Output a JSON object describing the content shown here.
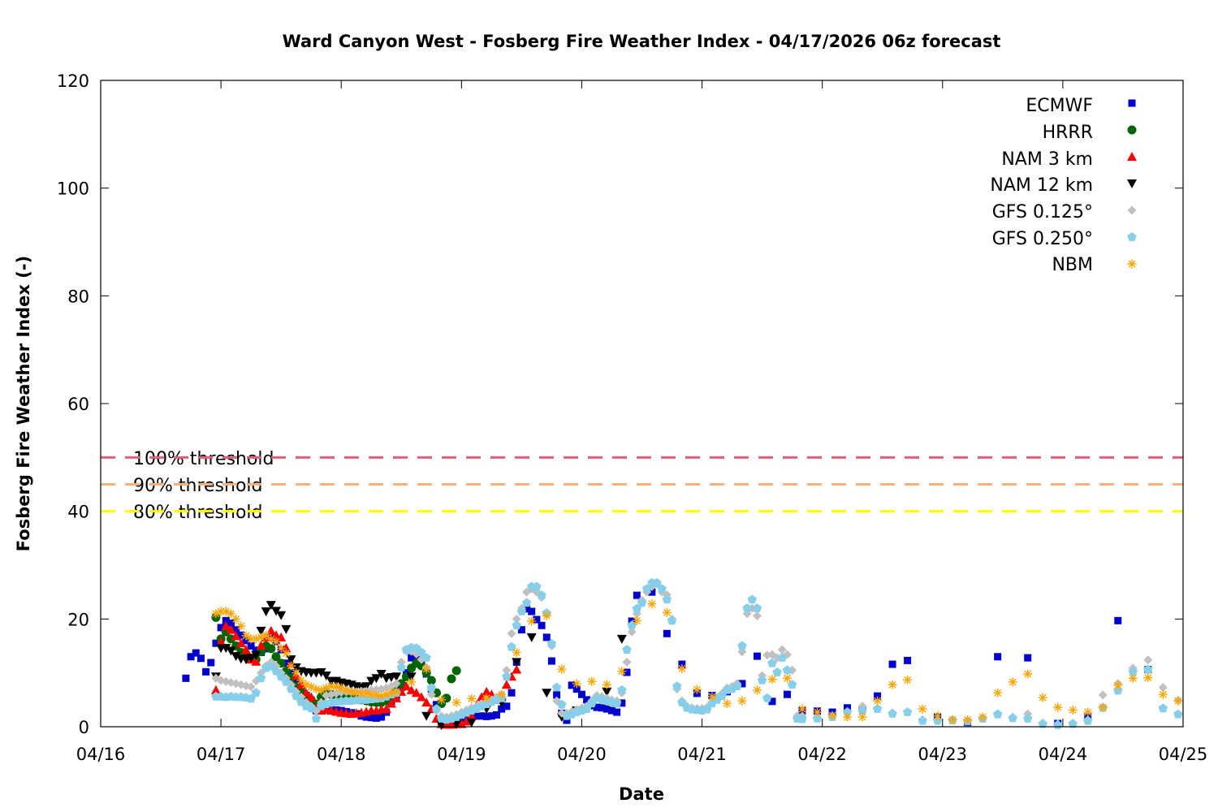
{
  "chart_data": {
    "type": "scatter",
    "title": "Ward Canyon West - Fosberg Fire Weather Index - 04/17/2026 06z forecast",
    "xlabel": "Date",
    "ylabel": "Fosberg Fire Weather Index (-)",
    "xlim": [
      "2026-04-16T00:00",
      "2026-04-25T00:00"
    ],
    "ylim": [
      0,
      120
    ],
    "yticks": [
      0,
      20,
      40,
      60,
      80,
      100,
      120
    ],
    "xticks": [
      {
        "t": "2026-04-16T00:00",
        "label": "04/16"
      },
      {
        "t": "2026-04-17T00:00",
        "label": "04/17"
      },
      {
        "t": "2026-04-18T00:00",
        "label": "04/18"
      },
      {
        "t": "2026-04-19T00:00",
        "label": "04/19"
      },
      {
        "t": "2026-04-20T00:00",
        "label": "04/20"
      },
      {
        "t": "2026-04-21T00:00",
        "label": "04/21"
      },
      {
        "t": "2026-04-22T00:00",
        "label": "04/22"
      },
      {
        "t": "2026-04-23T00:00",
        "label": "04/23"
      },
      {
        "t": "2026-04-24T00:00",
        "label": "04/24"
      },
      {
        "t": "2026-04-25T00:00",
        "label": "04/25"
      }
    ],
    "grid": false,
    "legend_position": "top-right",
    "thresholds": [
      {
        "label": "100% threshold",
        "value": 50,
        "color": "#e0607a"
      },
      {
        "label": "90% threshold",
        "value": 45,
        "color": "#f5b27e"
      },
      {
        "label": "80% threshold",
        "value": 40,
        "color": "#ffff00"
      }
    ],
    "series": [
      {
        "name": "ECMWF",
        "marker": "square",
        "color": "#0000cc",
        "segments": [
          {
            "start": "2026-04-16T17:00",
            "step_hours": 1,
            "values": [
              9,
              13,
              13.7,
              12.7,
              10.2,
              11.9,
              15.5,
              18.4,
              19.7,
              19.2,
              18,
              17,
              16,
              15,
              14.2,
              13.8,
              14.5,
              16.6,
              15.8,
              14.3,
              11.8,
              10,
              8.5,
              7,
              5.8,
              4.6,
              3,
              3,
              3.2,
              3,
              3.1,
              3,
              2.8,
              2.6,
              2.4,
              2,
              1.8,
              1.7,
              1.6,
              1.8,
              2.7,
              4.3,
              5.7,
              7.3,
              10,
              12.8,
              12.8,
              11.5,
              9.8,
              7,
              4.1,
              0.8,
              0.8,
              0.8,
              1.2,
              1.6,
              1.8,
              2,
              2,
              2,
              1.9,
              2,
              2.2,
              3.3,
              3.8,
              6.3,
              12,
              18,
              21.9,
              21.4,
              19.9,
              18.8,
              16.6,
              12.2,
              5.9,
              2.5,
              1.2,
              7.7,
              7,
              6,
              5,
              4,
              3.6,
              3.5,
              3.3,
              3,
              2.7,
              4.4,
              10.1,
              19.6,
              24.4
            ]
          },
          {
            "start": "2026-04-20T14:00",
            "step_hours": 3,
            "values": [
              25,
              17.3,
              11.6,
              6.2,
              5.8,
              6.5,
              8,
              13.1,
              4.7,
              6,
              3,
              2.9,
              2.7,
              3.5,
              3.3,
              5.7,
              11.6,
              12.3
            ]
          },
          {
            "start": "2026-04-22T23:00",
            "step_hours": 6,
            "values": [
              1.8,
              0.8,
              13,
              12.8,
              0.6,
              1.8,
              19.7,
              10.6
            ]
          }
        ]
      },
      {
        "name": "HRRR",
        "marker": "circle",
        "color": "#006400",
        "segments": [
          {
            "start": "2026-04-16T23:00",
            "step_hours": 1,
            "values": [
              20.3,
              16.3,
              17.6,
              16.3,
              15,
              13.8,
              13.1,
              12.6,
              12.5,
              13.9,
              15,
              14.5,
              13,
              11.8,
              10.3,
              9,
              7.5,
              6.5,
              5.7,
              5,
              4.2,
              5.5,
              6.3,
              6,
              5.8,
              5.6,
              5.5,
              5.3,
              5.2,
              5,
              4.8,
              4.6,
              4.5,
              4.5,
              4.8,
              5.5,
              6.5,
              8,
              9.3,
              10.9,
              11.8,
              11.3,
              10,
              8.6,
              6.3,
              4.3,
              5.3,
              8.9,
              10.4
            ]
          }
        ]
      },
      {
        "name": "NAM 3 km",
        "marker": "triangle-up",
        "color": "#ff0000",
        "segments": [
          {
            "start": "2026-04-16T23:00",
            "step_hours": 1,
            "values": [
              6.8,
              15.8,
              18.7,
              18,
              16.8,
              15.5,
              14.3,
              12.5,
              12.1,
              15.1,
              16.6,
              17.8,
              17,
              16.6,
              14.6,
              11.8,
              9.5,
              7.8,
              6.3,
              5.5,
              3.5,
              3,
              3.2,
              3,
              2.8,
              2.6,
              2.5,
              2.4,
              2.5,
              2.6,
              2.8,
              3,
              3,
              3.2,
              3.3,
              4.3,
              5.3,
              6.5,
              7.5,
              6.8,
              6.3,
              5.5,
              4.5,
              3.3,
              1.5,
              0.5,
              0.4,
              0.4,
              0.5,
              0.5,
              1,
              2,
              4,
              5.5,
              6.5,
              6,
              5,
              5.5,
              7.8,
              9.3,
              10.6
            ]
          }
        ]
      },
      {
        "name": "NAM 12 km",
        "marker": "triangle-down",
        "color": "#000000",
        "segments": [
          {
            "start": "2026-04-16T23:00",
            "step_hours": 1,
            "values": [
              9.3,
              14.6,
              14.6,
              14.1,
              13.1,
              12.6,
              12.5,
              12.8,
              13.3,
              17.8,
              21.4,
              22.6,
              21.5,
              20.7,
              18.1,
              12.5,
              11,
              10.3,
              10.1,
              10,
              10,
              10.1,
              9.5,
              8.5,
              8.5,
              8.2,
              8,
              7.8,
              7.5,
              7.3,
              7.5,
              8.5,
              9,
              9.8,
              9,
              9.2
            ]
          },
          {
            "start": "2026-04-18T11:00",
            "step_hours": 3,
            "values": [
              9.3,
              9.3,
              2,
              0.3,
              0.5,
              0.8,
              3.3,
              4.5,
              12,
              16.6,
              6.3,
              1.8,
              3,
              4,
              6.5,
              16.3
            ]
          }
        ]
      },
      {
        "name": "GFS 0.125°",
        "marker": "diamond",
        "color": "#c0c0c0",
        "segments": [
          {
            "start": "2026-04-16T23:00",
            "step_hours": 1,
            "values": [
              9,
              8.6,
              8.4,
              8.2,
              8,
              7.8,
              7.6,
              7.4,
              8.5,
              10,
              11.3,
              12,
              11.3,
              10,
              9,
              7.8,
              6.5,
              5.5,
              4.5,
              3.8,
              2.9,
              4.5,
              5.8,
              6,
              6.2,
              6.4,
              6.5,
              6.5,
              6.5,
              6.6,
              6.6,
              6.8,
              6.9,
              7,
              7.2,
              7.5,
              8,
              12,
              14,
              14,
              13.5,
              12.5,
              11,
              6,
              3,
              2,
              1.8,
              2,
              2.3,
              2.7,
              3.1,
              3.5,
              3.8,
              4.3,
              4.7,
              5,
              5.5,
              6,
              10.5,
              17.3,
              20,
              22,
              25,
              25.6,
              25,
              24,
              21,
              15,
              4.8,
              2.5,
              2.5,
              2.8,
              3.2,
              3.5,
              3.8,
              4.8,
              5.8,
              5.6,
              5.3,
              5,
              4.8,
              6.3,
              12,
              17.6,
              21,
              23.5,
              25,
              26,
              26.5,
              25,
              24.5,
              20,
              7,
              4.8,
              3.8,
              3.5,
              3.4,
              3.4,
              3.6,
              4.6,
              5.4,
              6.2,
              7.2,
              7.5,
              8,
              13.9,
              21,
              22,
              20.6,
              9.5,
              13.3,
              13.4,
              12.8,
              14.3,
              13.4,
              10.5,
              2
            ]
          },
          {
            "start": "2026-04-21T20:00",
            "step_hours": 3,
            "values": [
              2,
              1.6,
              2,
              2.8,
              3.8,
              3.4,
              2.6,
              2.8,
              1.3,
              1.3,
              1.3,
              1.1,
              1.6,
              2.4,
              1.8,
              2.4,
              0.7,
              0.5,
              0.7,
              1.3,
              5.9,
              8,
              10.9,
              12.4,
              7.3,
              4.9
            ]
          }
        ]
      },
      {
        "name": "GFS 0.250°",
        "marker": "pentagon",
        "color": "#87ceeb",
        "segments": [
          {
            "start": "2026-04-16T23:00",
            "step_hours": 1,
            "values": [
              5.6,
              5.6,
              5.5,
              5.6,
              5.5,
              5.5,
              5.4,
              5.2,
              6.3,
              9,
              10.9,
              11.2,
              10.3,
              9.3,
              8.3,
              7,
              5.7,
              4.6,
              3.8,
              3.4,
              1.5,
              3.8,
              4.2,
              4.5,
              4.6,
              4.7,
              4.8,
              4.8,
              4.9,
              5,
              5,
              5.1,
              5.2,
              5.3,
              5.6,
              6,
              6.3,
              11,
              14.3,
              14.7,
              14.6,
              13.8,
              12.8,
              7.2,
              3.3,
              1.5,
              1.3,
              1.5,
              1.8,
              2.2,
              2.6,
              3,
              3.3,
              3.8,
              4.2,
              4.6,
              5,
              5.3,
              9.3,
              14.8,
              18.8,
              21.4,
              23,
              26,
              26,
              24.4,
              21.1,
              15.4,
              7.3,
              4.1,
              2,
              2.3,
              2.7,
              3,
              3.3,
              4.3,
              5.3,
              5,
              4.8,
              4.5,
              4.3,
              6.8,
              14.3,
              18.8,
              21.9,
              23,
              25.6,
              26.7,
              26.7,
              25.6,
              23.6,
              19.7,
              7.5,
              4.5,
              3.5,
              3.2,
              3.1,
              3,
              3.2,
              4.3,
              5,
              5.7,
              6.8,
              7,
              7.5,
              15,
              22,
              23.6,
              22,
              8.6,
              5.3,
              11.8,
              10.1,
              12.8,
              10.5,
              7.8,
              1.5
            ]
          },
          {
            "start": "2026-04-21T20:00",
            "step_hours": 3,
            "values": [
              1.4,
              1.5,
              1.8,
              2.7,
              3,
              3.3,
              2.4,
              2.7,
              1.1,
              1.1,
              1.2,
              1,
              1.5,
              2.3,
              1.6,
              1.5,
              0.5,
              0.3,
              0.5,
              1.1,
              3.5,
              6.7,
              10.2,
              10.6,
              3.4,
              2.3
            ]
          }
        ]
      },
      {
        "name": "NBM",
        "marker": "asterisk",
        "color": "#ffa500",
        "segments": [
          {
            "start": "2026-04-16T23:00",
            "step_hours": 1,
            "values": [
              21,
              21.4,
              21.4,
              21,
              20,
              18.7,
              16.9,
              16.3,
              16.3,
              16.6,
              17,
              16.3,
              15.8,
              14.6,
              13.6,
              11.3,
              10,
              8.6,
              7.8,
              7.4,
              7,
              6.8,
              7.2,
              7.5,
              7.4,
              7.2,
              6.8,
              6.5,
              6.3,
              6.2,
              6.2,
              6,
              5.9,
              5.7,
              6,
              6.3,
              6.5
            ]
          },
          {
            "start": "2026-04-18T14:00",
            "step_hours": 3,
            "values": [
              8.3,
              10.7,
              5,
              4.5,
              5.2,
              5.3,
              6,
              13.8,
              19.6,
              20.6,
              10.7,
              8,
              8.4,
              7.8,
              10.3,
              19.7,
              22.8,
              21.2,
              10.8,
              6.9,
              5.6,
              4.3,
              4.8,
              6.8,
              8.8,
              9,
              3.3,
              2.7,
              2.1,
              1.8,
              1.8,
              4.8,
              7.8,
              8.7,
              3.3,
              2,
              1.3,
              1.3,
              1.8,
              6.3,
              8.3,
              9.8,
              5.4,
              3.6,
              3.1,
              2.7,
              3.6,
              7.7,
              9,
              9.1,
              6,
              4.8
            ]
          }
        ]
      }
    ]
  }
}
